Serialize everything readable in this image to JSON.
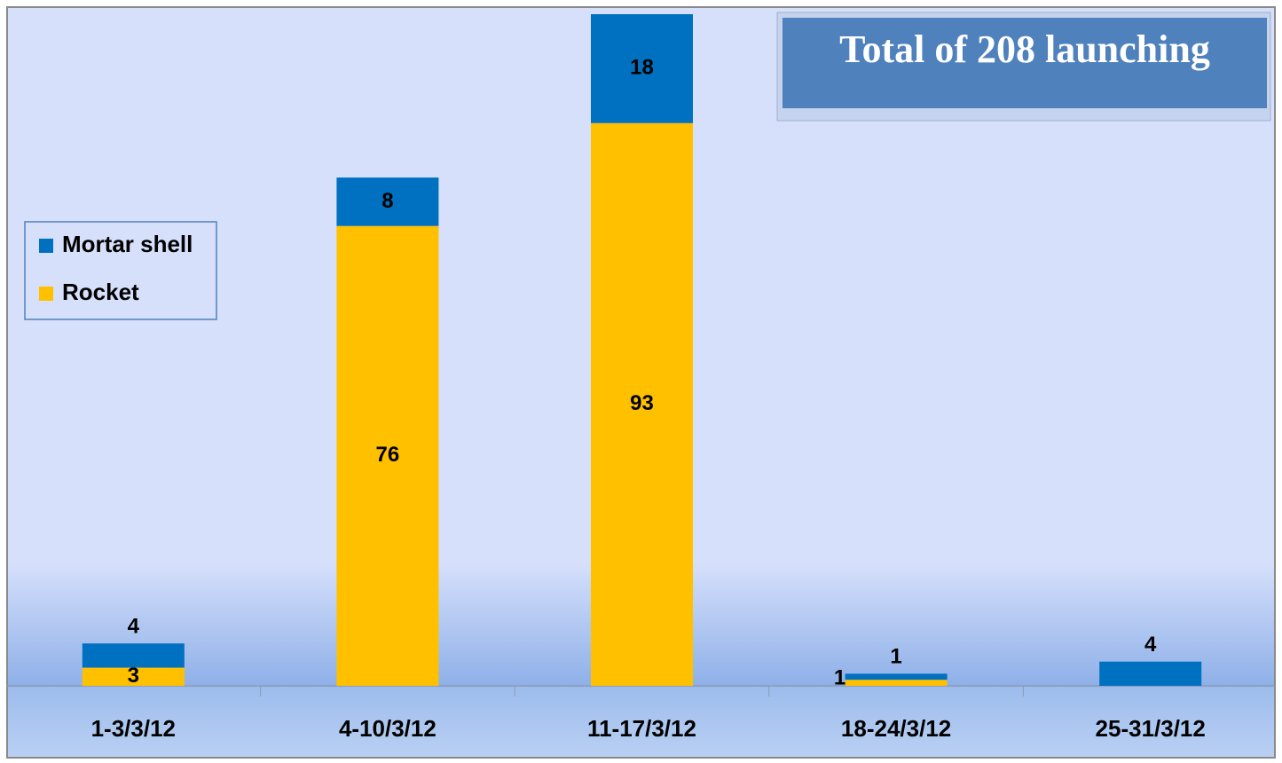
{
  "chart_data": {
    "type": "stacked-bar",
    "title": "Total of 208 launching",
    "categories": [
      "1-3/3/12",
      "4-10/3/12",
      "11-17/3/12",
      "18-24/3/12",
      "25-31/3/12"
    ],
    "series": [
      {
        "name": "Rocket",
        "color": "#ffc000",
        "values": [
          3,
          76,
          93,
          1,
          0
        ]
      },
      {
        "name": "Mortar shell",
        "color": "#0070c0",
        "values": [
          4,
          8,
          18,
          1,
          4
        ]
      }
    ],
    "ylim": [
      0,
      111
    ],
    "legend": "left"
  }
}
